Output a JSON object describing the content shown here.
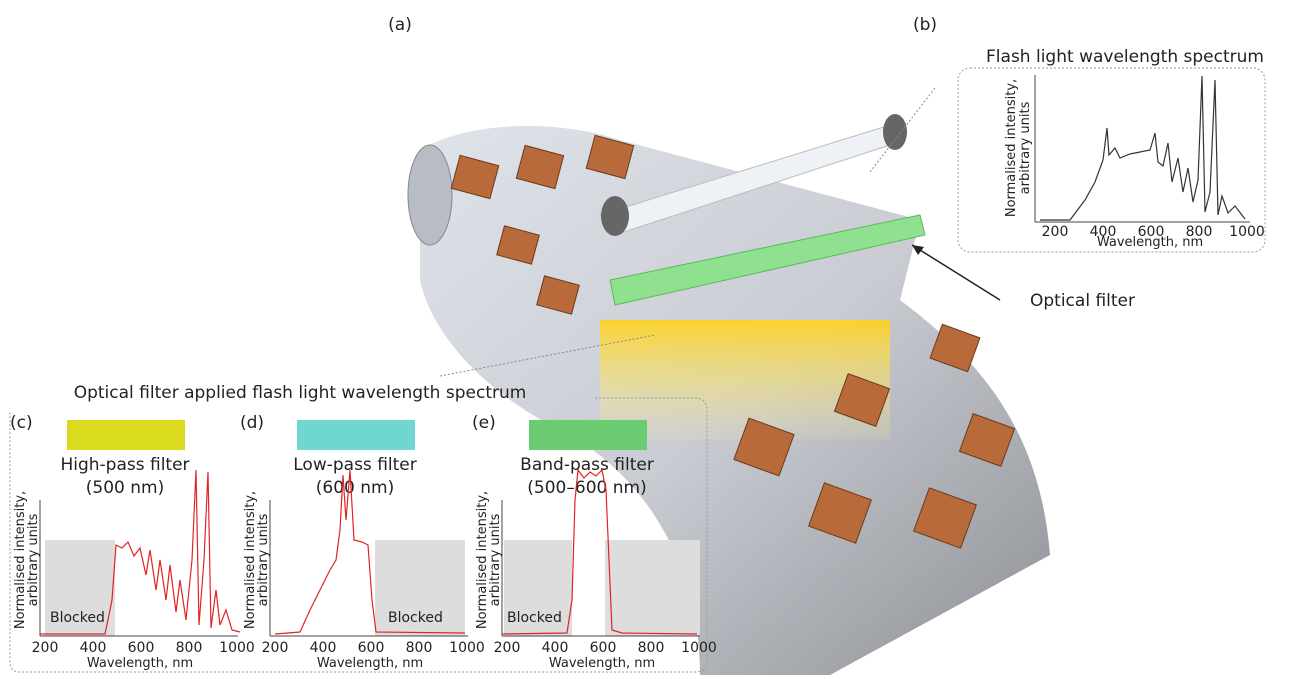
{
  "panel_labels": {
    "a": "(a)",
    "b": "(b)"
  },
  "flash_spectrum": {
    "title": "Flash light wavelength spectrum",
    "y_label": [
      "Normalised intensity,",
      "arbitrary units"
    ],
    "x_label": "Wavelength, nm",
    "x_ticks": [
      "200",
      "400",
      "600",
      "800",
      "1000"
    ]
  },
  "optical_filter_label": "Optical filter",
  "filtered_title": "Optical filter applied flash light wavelength spectrum",
  "filters": [
    {
      "panel": "(c)",
      "name": "High-pass filter",
      "cutoff": "(500 nm)",
      "blocked": "Blocked",
      "color": "#dada1e",
      "y_label": [
        "Normalised intensity,",
        "arbitrary units"
      ],
      "x_label": "Wavelength, nm",
      "x_ticks": [
        "200",
        "400",
        "600",
        "800",
        "1000"
      ]
    },
    {
      "panel": "(d)",
      "name": "Low-pass filter",
      "cutoff": "(600 nm)",
      "blocked": "Blocked",
      "color": "#6fd6d0",
      "y_label": [
        "Normalised intensity,",
        "arbitrary units"
      ],
      "x_label": "Wavelength, nm",
      "x_ticks": [
        "200",
        "400",
        "600",
        "800",
        "1000"
      ]
    },
    {
      "panel": "(e)",
      "name": "Band-pass filter",
      "cutoff": "(500–600 nm)",
      "blocked": "Blocked",
      "color": "#6ccc72",
      "y_label": [
        "Normalised intensity,",
        "arbitrary units"
      ],
      "x_label": "Wavelength, nm",
      "x_ticks": [
        "200",
        "400",
        "600",
        "800",
        "1000"
      ]
    }
  ]
}
